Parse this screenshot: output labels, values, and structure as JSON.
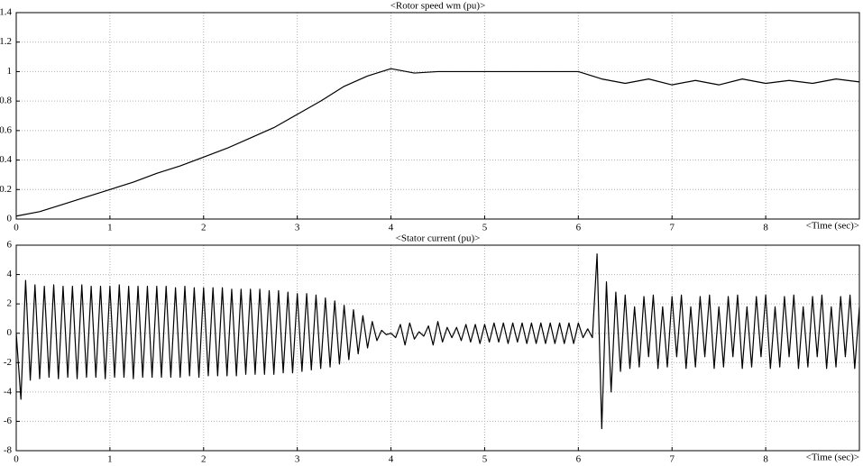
{
  "chart_data": [
    {
      "type": "line",
      "title": "<Rotor speed wm (pu)>",
      "xlabel": "<Time (sec)>",
      "xlim": [
        0,
        9
      ],
      "xticks": [
        0,
        1,
        2,
        3,
        4,
        5,
        6,
        7,
        8
      ],
      "ylim": [
        0,
        1.4
      ],
      "yticks": [
        0,
        0.2,
        0.4,
        0.6,
        0.8,
        1,
        1.2,
        1.4
      ],
      "grid": true,
      "x": [
        0,
        0.25,
        0.5,
        0.75,
        1,
        1.25,
        1.5,
        1.75,
        2,
        2.25,
        2.5,
        2.75,
        3,
        3.25,
        3.5,
        3.75,
        4,
        4.25,
        4.5,
        4.75,
        5,
        5.25,
        5.5,
        5.75,
        6,
        6.25,
        6.5,
        6.75,
        7,
        7.25,
        7.5,
        7.75,
        8,
        8.25,
        8.5,
        8.75,
        9
      ],
      "series": [
        {
          "color": "#000000",
          "values": [
            0.02,
            0.05,
            0.1,
            0.15,
            0.2,
            0.25,
            0.31,
            0.36,
            0.42,
            0.48,
            0.55,
            0.62,
            0.71,
            0.8,
            0.9,
            0.97,
            1.02,
            0.99,
            1.0,
            1.0,
            1.0,
            1.0,
            1.0,
            1.0,
            1.0,
            0.95,
            0.92,
            0.95,
            0.91,
            0.94,
            0.91,
            0.95,
            0.92,
            0.94,
            0.92,
            0.95,
            0.93
          ]
        }
      ]
    },
    {
      "type": "line",
      "title": "<Stator current (pu)>",
      "xlabel": "<Time (sec)>",
      "xlim": [
        0,
        9
      ],
      "xticks": [
        0,
        1,
        2,
        3,
        4,
        5,
        6,
        7,
        8
      ],
      "ylim": [
        -8,
        6
      ],
      "yticks": [
        -8,
        -6,
        -4,
        -2,
        0,
        2,
        4,
        6
      ],
      "grid": true,
      "x": [
        0,
        0.05,
        0.1,
        0.15,
        0.2,
        0.25,
        0.3,
        0.35,
        0.4,
        0.45,
        0.5,
        0.55,
        0.6,
        0.65,
        0.7,
        0.75,
        0.8,
        0.85,
        0.9,
        0.95,
        1,
        1.05,
        1.1,
        1.15,
        1.2,
        1.25,
        1.3,
        1.35,
        1.4,
        1.45,
        1.5,
        1.55,
        1.6,
        1.65,
        1.7,
        1.75,
        1.8,
        1.85,
        1.9,
        1.95,
        2,
        2.05,
        2.1,
        2.15,
        2.2,
        2.25,
        2.3,
        2.35,
        2.4,
        2.45,
        2.5,
        2.55,
        2.6,
        2.65,
        2.7,
        2.75,
        2.8,
        2.85,
        2.9,
        2.95,
        3,
        3.05,
        3.1,
        3.15,
        3.2,
        3.25,
        3.3,
        3.35,
        3.4,
        3.45,
        3.5,
        3.55,
        3.6,
        3.65,
        3.7,
        3.75,
        3.8,
        3.85,
        3.9,
        3.95,
        4,
        4.05,
        4.1,
        4.15,
        4.2,
        4.25,
        4.3,
        4.35,
        4.4,
        4.45,
        4.5,
        4.55,
        4.6,
        4.65,
        4.7,
        4.75,
        4.8,
        4.85,
        4.9,
        4.95,
        5,
        5.05,
        5.1,
        5.15,
        5.2,
        5.25,
        5.3,
        5.35,
        5.4,
        5.45,
        5.5,
        5.55,
        5.6,
        5.65,
        5.7,
        5.75,
        5.8,
        5.85,
        5.9,
        5.95,
        6,
        6.05,
        6.1,
        6.15,
        6.2,
        6.25,
        6.3,
        6.35,
        6.4,
        6.45,
        6.5,
        6.55,
        6.6,
        6.65,
        6.7,
        6.75,
        6.8,
        6.85,
        6.9,
        6.95,
        7,
        7.05,
        7.1,
        7.15,
        7.2,
        7.25,
        7.3,
        7.35,
        7.4,
        7.45,
        7.5,
        7.55,
        7.6,
        7.65,
        7.7,
        7.75,
        7.8,
        7.85,
        7.9,
        7.95,
        8,
        8.05,
        8.1,
        8.15,
        8.2,
        8.25,
        8.3,
        8.35,
        8.4,
        8.45,
        8.5,
        8.55,
        8.6,
        8.65,
        8.7,
        8.75,
        8.8,
        8.85,
        8.9,
        8.95,
        9
      ],
      "series": [
        {
          "color": "#000000",
          "values": [
            0,
            -4.5,
            3.6,
            -3.2,
            3.3,
            -3.1,
            3.2,
            -3.0,
            3.3,
            -3.1,
            3.2,
            -3.0,
            3.2,
            -3.1,
            3.3,
            -3.0,
            3.2,
            -3.0,
            3.2,
            -3.1,
            3.2,
            -3.0,
            3.3,
            -3.0,
            3.2,
            -3.1,
            3.2,
            -3.0,
            3.2,
            -3.0,
            3.2,
            -3.0,
            3.2,
            -3.0,
            3.1,
            -3.0,
            3.2,
            -2.9,
            3.1,
            -3.0,
            3.1,
            -2.9,
            3.1,
            -2.9,
            3.1,
            -2.9,
            3.0,
            -2.9,
            3.0,
            -2.8,
            3.0,
            -2.8,
            3.0,
            -2.8,
            2.9,
            -2.8,
            2.9,
            -2.7,
            2.8,
            -2.7,
            2.7,
            -2.6,
            2.7,
            -2.5,
            2.6,
            -2.4,
            2.4,
            -2.3,
            2.2,
            -2.1,
            1.9,
            -1.8,
            1.6,
            -1.4,
            1.2,
            -1.0,
            0.8,
            -0.5,
            0.2,
            -0.1,
            0,
            -0.3,
            0.6,
            -0.8,
            0.7,
            -0.4,
            0.1,
            -0.2,
            0.5,
            -0.8,
            0.8,
            -0.6,
            0.4,
            -0.3,
            0.4,
            -0.5,
            0.6,
            -0.6,
            0.6,
            -0.7,
            0.6,
            -0.6,
            0.7,
            -0.6,
            0.7,
            -0.7,
            0.7,
            -0.6,
            0.7,
            -0.7,
            0.7,
            -0.7,
            0.7,
            -0.7,
            0.7,
            -0.7,
            0.7,
            -0.7,
            0.7,
            -0.7,
            0.7,
            -0.3,
            0.3,
            -0.3,
            5.4,
            -6.5,
            3.5,
            -4.0,
            2.8,
            -2.6,
            2.6,
            -2.4,
            1.8,
            -2.3,
            2.5,
            -1.6,
            2.6,
            -2.4,
            1.8,
            -2.3,
            2.5,
            -1.6,
            2.6,
            -2.4,
            1.8,
            -2.3,
            2.5,
            -1.6,
            2.6,
            -2.4,
            1.8,
            -2.3,
            2.5,
            -1.6,
            2.6,
            -2.4,
            1.8,
            -2.3,
            2.5,
            -1.6,
            2.6,
            -2.4,
            1.8,
            -2.3,
            2.5,
            -1.6,
            2.6,
            -2.4,
            1.8,
            -2.3,
            2.5,
            -1.6,
            2.6,
            -2.4,
            1.8,
            -2.3,
            2.5,
            -1.6,
            2.6,
            -2.4,
            1.8
          ]
        }
      ]
    }
  ]
}
